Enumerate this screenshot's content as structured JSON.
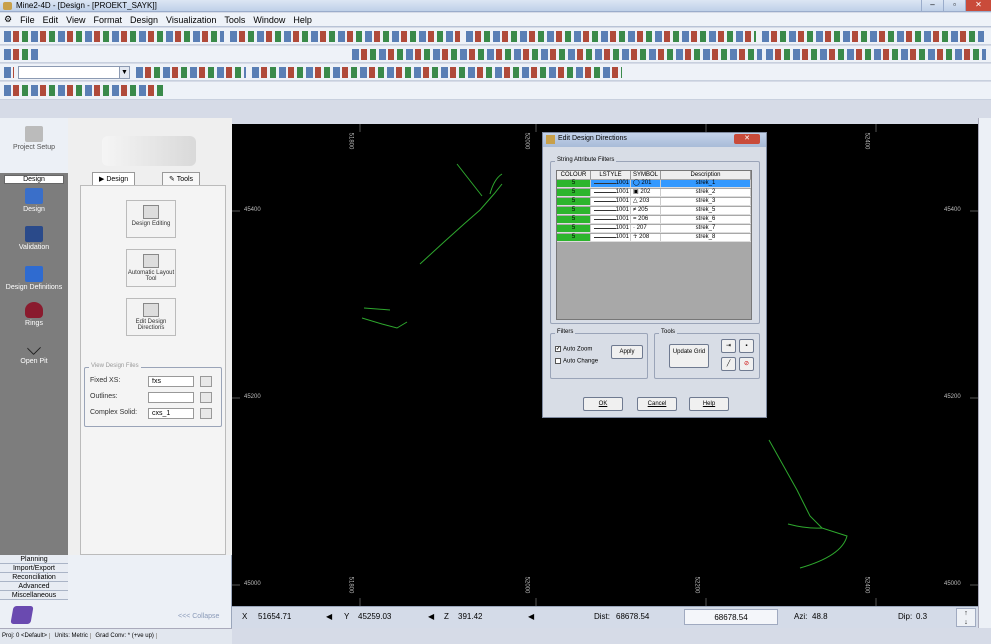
{
  "window": {
    "title": "Mine2-4D - [Design - [PROEKT_SAYK]]"
  },
  "menu": [
    "File",
    "Edit",
    "View",
    "Format",
    "Design",
    "Visualization",
    "Tools",
    "Window",
    "Help"
  ],
  "left_nav": {
    "project_setup": "Project Setup",
    "design_tab": "Design",
    "items": [
      "Design",
      "Validation",
      "Design Definitions",
      "Rings",
      "Open Pit"
    ]
  },
  "bottom_nav": [
    "Planning",
    "Import/Export",
    "Reconciliation",
    "Advanced",
    "Miscellaneous"
  ],
  "inner": {
    "tab_design": "Design",
    "tab_tools": "Tools",
    "design_editing": "Design Editing",
    "auto_layout": "Automatic Layout Tool",
    "edit_directions": "Edit Design Directions",
    "view_files_label": "View Design Files",
    "fixed_xs_label": "Fixed XS:",
    "fixed_xs_val": "fxs",
    "outlines_label": "Outlines:",
    "complex_label": "Complex Solid:",
    "complex_val": "cxs_1",
    "collapse": "<<< Collapse"
  },
  "canvas": {
    "x_labels": [
      "51800",
      "52000",
      "52200",
      "52400"
    ],
    "y_labels": [
      "45400",
      "45200",
      "45000"
    ]
  },
  "status": {
    "x_label": "X",
    "x": "51654.71",
    "y_label": "Y",
    "y": "45259.03",
    "z_label": "Z",
    "z": "391.42",
    "dist_label": "Dist:",
    "dist": "68678.54",
    "dist2": "68678.54",
    "azi_label": "Azi:",
    "azi": "48.8",
    "dip_label": "Dip:",
    "dip": "0.3"
  },
  "bottom_status": [
    "Proj: 0 <Default>",
    "Units: Metric",
    "Grad Conv: * (+ve up)"
  ],
  "dialog": {
    "title": "Edit Design Directions",
    "group_filters": "String Attribute Filters",
    "columns": [
      "COLOUR",
      "LSTYLE",
      "SYMBOL",
      "Description"
    ],
    "rows": [
      {
        "colour": "5",
        "lstyle": "1001",
        "symbol": "201",
        "desc": "strek_1"
      },
      {
        "colour": "5",
        "lstyle": "1001",
        "symbol": "202",
        "desc": "strek_2"
      },
      {
        "colour": "5",
        "lstyle": "1001",
        "symbol": "203",
        "desc": "strek_3"
      },
      {
        "colour": "5",
        "lstyle": "1001",
        "symbol": "205",
        "desc": "strek_5"
      },
      {
        "colour": "5",
        "lstyle": "1001",
        "symbol": "206",
        "desc": "strek_6"
      },
      {
        "colour": "5",
        "lstyle": "1001",
        "symbol": "207",
        "desc": "strek_7"
      },
      {
        "colour": "5",
        "lstyle": "1001",
        "symbol": "208",
        "desc": "strek_8"
      }
    ],
    "filters_label": "Filters",
    "auto_zoom": "Auto Zoom",
    "auto_change": "Auto Change",
    "apply": "Apply",
    "tools_label": "Tools",
    "update_grid": "Update Grid",
    "ok": "OK",
    "cancel": "Cancel",
    "help": "Help"
  }
}
